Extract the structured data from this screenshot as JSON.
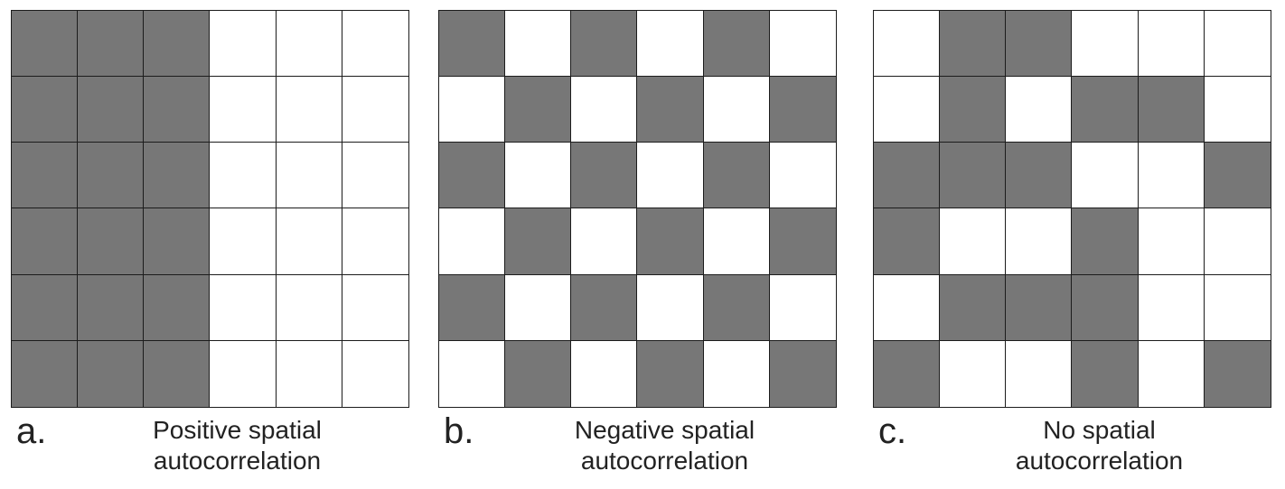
{
  "colors": {
    "filled": "#777777",
    "empty": "#ffffff",
    "border": "#1c1c1c"
  },
  "panels": [
    {
      "letter": "a.",
      "label_lines": [
        "Positive spatial",
        "autocorrelation"
      ],
      "grid": [
        [
          1,
          1,
          1,
          0,
          0,
          0
        ],
        [
          1,
          1,
          1,
          0,
          0,
          0
        ],
        [
          1,
          1,
          1,
          0,
          0,
          0
        ],
        [
          1,
          1,
          1,
          0,
          0,
          0
        ],
        [
          1,
          1,
          1,
          0,
          0,
          0
        ],
        [
          1,
          1,
          1,
          0,
          0,
          0
        ]
      ]
    },
    {
      "letter": "b.",
      "label_lines": [
        "Negative spatial",
        "autocorrelation"
      ],
      "grid": [
        [
          1,
          0,
          1,
          0,
          1,
          0
        ],
        [
          0,
          1,
          0,
          1,
          0,
          1
        ],
        [
          1,
          0,
          1,
          0,
          1,
          0
        ],
        [
          0,
          1,
          0,
          1,
          0,
          1
        ],
        [
          1,
          0,
          1,
          0,
          1,
          0
        ],
        [
          0,
          1,
          0,
          1,
          0,
          1
        ]
      ]
    },
    {
      "letter": "c.",
      "label_lines": [
        "No spatial",
        "autocorrelation"
      ],
      "grid": [
        [
          0,
          1,
          1,
          0,
          0,
          0
        ],
        [
          0,
          1,
          0,
          1,
          1,
          0
        ],
        [
          1,
          1,
          1,
          0,
          0,
          1
        ],
        [
          1,
          0,
          0,
          1,
          0,
          0
        ],
        [
          0,
          1,
          1,
          1,
          0,
          0
        ],
        [
          1,
          0,
          0,
          1,
          0,
          1
        ]
      ]
    }
  ]
}
